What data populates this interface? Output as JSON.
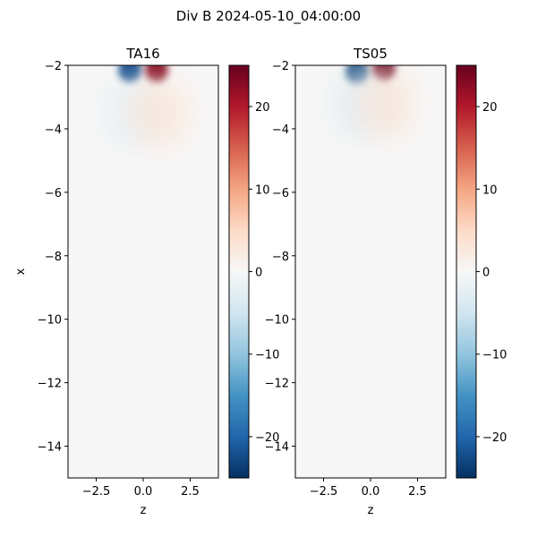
{
  "suptitle": "Div B 2024-05-10_04:00:00",
  "colors": {
    "background": "#f7f7f7",
    "positive": "#b2182b",
    "negative": "#2166ac",
    "frame": "#000000"
  },
  "chart_data": [
    {
      "type": "heatmap",
      "title": "TA16",
      "xlabel": "z",
      "ylabel": "x",
      "xlim": [
        -4,
        4
      ],
      "ylim": [
        -15,
        -2
      ],
      "xticks": [
        "−2.5",
        "0.0",
        "2.5"
      ],
      "xtick_values": [
        -2.5,
        0.0,
        2.5
      ],
      "yticks": [
        "−2",
        "−4",
        "−6",
        "−8",
        "−10",
        "−12",
        "−14"
      ],
      "ytick_values": [
        -2,
        -4,
        -6,
        -8,
        -10,
        -12,
        -14
      ],
      "colormap": "RdBu_r",
      "clim": [
        -25,
        25
      ],
      "colorbar_ticks": [
        "20",
        "10",
        "0",
        "−10",
        "−20"
      ],
      "colorbar_tick_values": [
        20,
        10,
        0,
        -10,
        -20
      ],
      "features": [
        {
          "sign": "negative",
          "z": -0.7,
          "x": -2.15,
          "peak": -22
        },
        {
          "sign": "positive",
          "z": 0.7,
          "x": -2.15,
          "peak": 23
        },
        {
          "sign": "negative",
          "z": -0.6,
          "x": -3.5,
          "peak": -3
        },
        {
          "sign": "positive",
          "z": 0.9,
          "x": -3.5,
          "peak": 4
        }
      ]
    },
    {
      "type": "heatmap",
      "title": "TS05",
      "xlabel": "z",
      "ylabel": "",
      "xlim": [
        -4,
        4
      ],
      "ylim": [
        -15,
        -2
      ],
      "xticks": [
        "−2.5",
        "0.0",
        "2.5"
      ],
      "xtick_values": [
        -2.5,
        0.0,
        2.5
      ],
      "yticks": [
        "−2",
        "−4",
        "−6",
        "−8",
        "−10",
        "−12",
        "−14"
      ],
      "ytick_values": [
        -2,
        -4,
        -6,
        -8,
        -10,
        -12,
        -14
      ],
      "colormap": "RdBu_r",
      "clim": [
        -25,
        25
      ],
      "colorbar_ticks": [
        "20",
        "10",
        "0",
        "−10",
        "−20"
      ],
      "colorbar_tick_values": [
        20,
        10,
        0,
        -10,
        -20
      ],
      "features": [
        {
          "sign": "negative",
          "z": -0.7,
          "x": -2.2,
          "peak": -23
        },
        {
          "sign": "positive",
          "z": 0.7,
          "x": -2.1,
          "peak": 25
        },
        {
          "sign": "negative",
          "z": -0.5,
          "x": -3.2,
          "peak": -4
        },
        {
          "sign": "positive",
          "z": 0.8,
          "x": -3.2,
          "peak": 4
        }
      ]
    }
  ]
}
